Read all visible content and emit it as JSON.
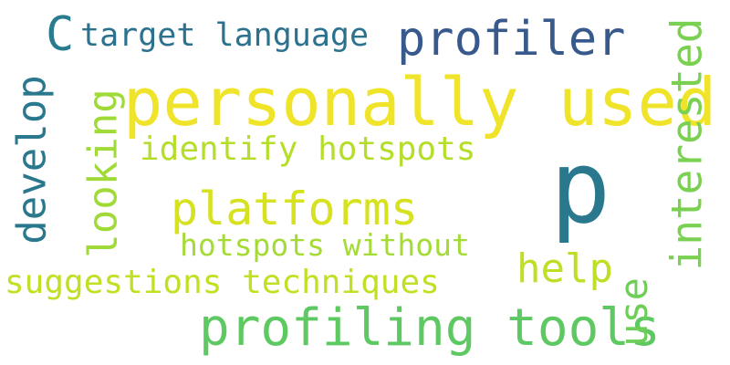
{
  "words": [
    {
      "text": "personally used",
      "color": "#f0e42a"
    },
    {
      "text": "p",
      "color": "#29788e"
    },
    {
      "text": "profiling tools",
      "color": "#5ec962"
    },
    {
      "text": "profiler",
      "color": "#38598c"
    },
    {
      "text": "platforms",
      "color": "#d6e21f"
    },
    {
      "text": "interested",
      "color": "#7ad151"
    },
    {
      "text": "develop",
      "color": "#2a788e"
    },
    {
      "text": "looking",
      "color": "#a0da39"
    },
    {
      "text": "identify hotspots",
      "color": "#b5de2b"
    },
    {
      "text": "help",
      "color": "#bddf26"
    },
    {
      "text": "use",
      "color": "#6ece58"
    },
    {
      "text": "hotspots without",
      "color": "#a5db36"
    },
    {
      "text": "suggestions techniques",
      "color": "#c2df23"
    },
    {
      "text": "target language",
      "color": "#2c728e"
    },
    {
      "text": "C",
      "color": "#287c8e"
    }
  ]
}
